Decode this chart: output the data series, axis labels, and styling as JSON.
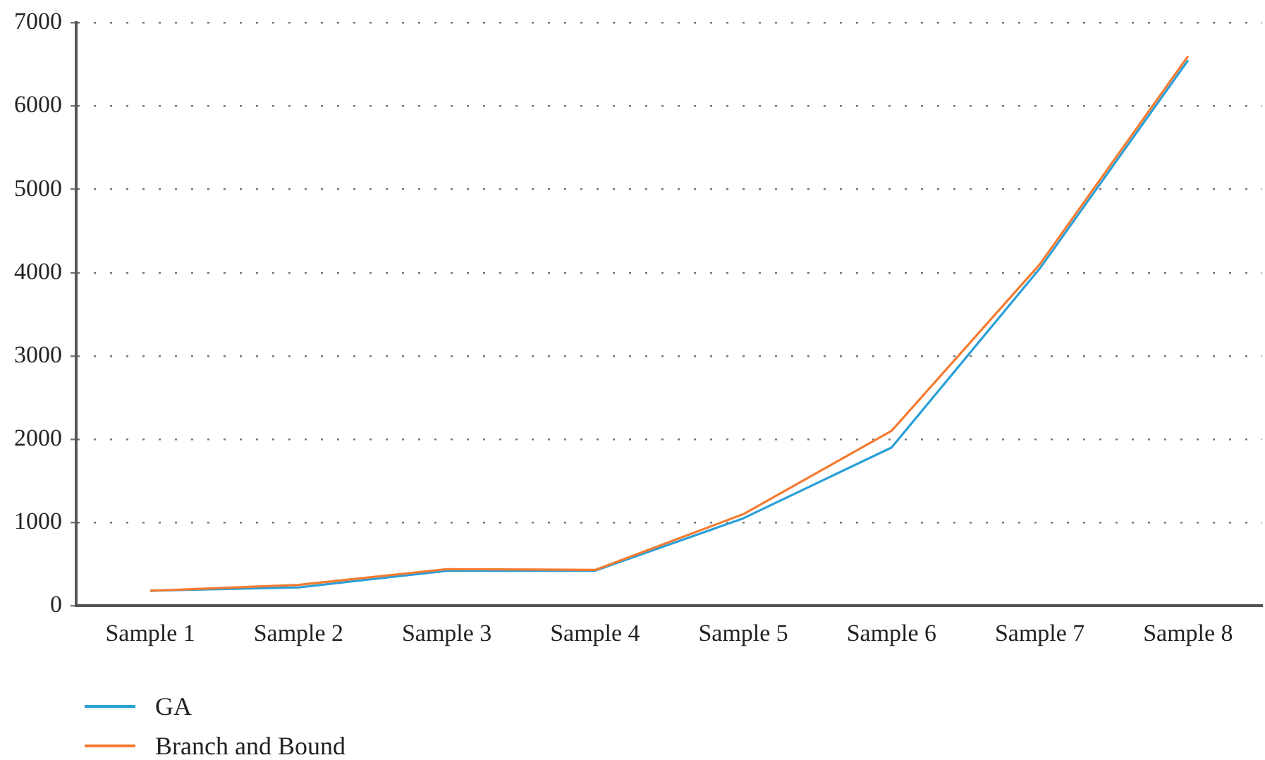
{
  "chart_data": {
    "type": "line",
    "categories": [
      "Sample 1",
      "Sample 2",
      "Sample 3",
      "Sample 4",
      "Sample 5",
      "Sample 6",
      "Sample 7",
      "Sample 8"
    ],
    "series": [
      {
        "name": "GA",
        "color": "#2a9fd8",
        "values": [
          180,
          220,
          420,
          420,
          1050,
          1900,
          4050,
          6550
        ]
      },
      {
        "name": "Branch and Bound",
        "color": "#f47b30",
        "values": [
          180,
          250,
          440,
          430,
          1100,
          2100,
          4100,
          6600
        ]
      }
    ],
    "ylim": [
      0,
      7000
    ],
    "yticks": [
      0,
      1000,
      2000,
      3000,
      4000,
      5000,
      6000,
      7000
    ],
    "grid": "y",
    "legend": "bottom left",
    "marker": "none",
    "line_style": "solid"
  }
}
